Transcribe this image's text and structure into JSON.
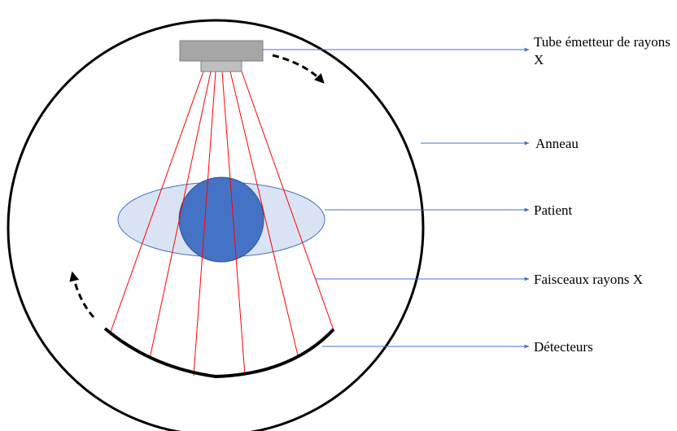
{
  "labels": {
    "tube": "Tube émetteur de rayons X",
    "ring": "Anneau",
    "patient": "Patient",
    "beams": "Faisceaux rayons X",
    "detectors": "Détecteurs"
  },
  "colors": {
    "ring": "#000000",
    "tube_body": "#a6a6a6",
    "tube_window": "#bfbfbf",
    "beam": "#ff0000",
    "patient_body": "#dae3f3",
    "patient_head": "#4472c4",
    "leader_line": "#4472c4",
    "detector_arc": "#000000"
  }
}
